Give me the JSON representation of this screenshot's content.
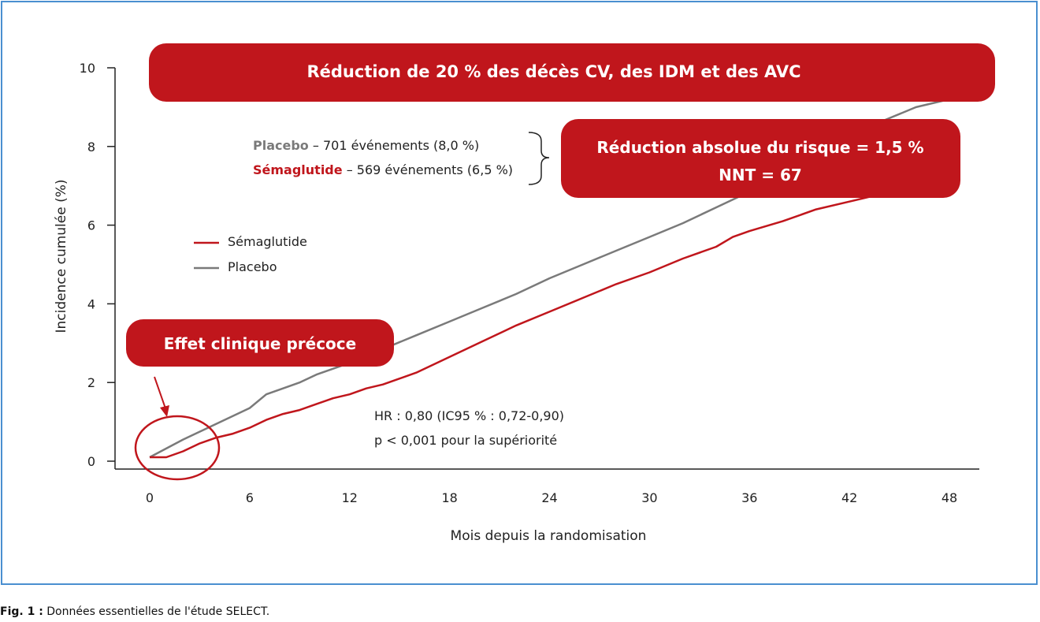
{
  "chart_data": {
    "type": "line",
    "xlabel": "Mois depuis la randomisation",
    "ylabel": "Incidence cumulée (%)",
    "xlim": [
      0,
      48
    ],
    "ylim": [
      0,
      10
    ],
    "xticks": [
      0,
      6,
      12,
      18,
      24,
      30,
      36,
      42,
      48
    ],
    "yticks": [
      0,
      2,
      4,
      6,
      8,
      10
    ],
    "grid": false,
    "legend_position": "left",
    "series": [
      {
        "name": "Sémaglutide",
        "color": "#c0161c",
        "x": [
          0,
          1,
          2,
          3,
          4,
          5,
          6,
          7,
          8,
          9,
          10,
          11,
          12,
          13,
          14,
          15,
          16,
          18,
          20,
          22,
          24,
          26,
          28,
          30,
          32,
          34,
          35,
          36,
          38,
          40,
          42,
          44,
          46,
          48
        ],
        "y": [
          0.1,
          0.1,
          0.25,
          0.45,
          0.6,
          0.7,
          0.85,
          1.05,
          1.2,
          1.3,
          1.45,
          1.6,
          1.7,
          1.85,
          1.95,
          2.1,
          2.25,
          2.65,
          3.05,
          3.45,
          3.8,
          4.15,
          4.5,
          4.8,
          5.15,
          5.45,
          5.7,
          5.85,
          6.1,
          6.4,
          6.6,
          6.8,
          7.05,
          7.4
        ]
      },
      {
        "name": "Placebo",
        "color": "#7a7a7a",
        "x": [
          0,
          2,
          4,
          6,
          7,
          8,
          9,
          10,
          12,
          14,
          16,
          18,
          20,
          22,
          24,
          26,
          28,
          30,
          32,
          34,
          36,
          38,
          40,
          42,
          44,
          46,
          48
        ],
        "y": [
          0.1,
          0.55,
          0.95,
          1.35,
          1.7,
          1.85,
          2.0,
          2.2,
          2.5,
          2.85,
          3.2,
          3.55,
          3.9,
          4.25,
          4.65,
          5.0,
          5.35,
          5.7,
          6.05,
          6.45,
          6.85,
          7.3,
          7.75,
          8.2,
          8.65,
          9.0,
          9.2
        ]
      }
    ],
    "annotations": {
      "banner_top": "Réduction de 20 % des décès CV, des IDM et des AVC",
      "banner_right_line1": "Réduction absolue du risque = 1,5 %",
      "banner_right_line2": "NNT = 67",
      "banner_left": "Effet clinique précoce",
      "events_placebo_name": "Placebo",
      "events_placebo_text": " – 701 événements (8,0 %)",
      "events_sema_name": "Sémaglutide",
      "events_sema_text": " – 569 événements (6,5 %)",
      "hr_line1": "HR : 0,80 (IC95 % : 0,72-0,90)",
      "hr_line2": "p < 0,001 pour la supériorité"
    },
    "colors": {
      "accent_red": "#c0161c",
      "placebo_gray": "#7a7a7a",
      "frame_blue": "#4a8fd0"
    }
  },
  "caption": {
    "label": "Fig. 1 :",
    "text": " Données essentielles de l'étude SELECT."
  }
}
